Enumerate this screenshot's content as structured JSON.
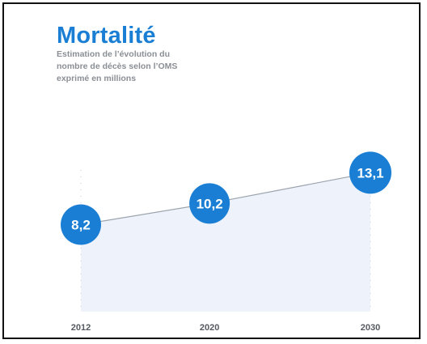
{
  "header": {
    "title": "Mortalité",
    "subtitle_lines": [
      "Estimation de l’évolution du",
      "nombre de décès selon l’OMS",
      "exprimé en millions"
    ]
  },
  "colors": {
    "accent": "#1a7fd4",
    "area_fill": "#eef3fb",
    "line": "#9aa3ad"
  },
  "chart_data": {
    "type": "area",
    "categories": [
      "2012",
      "2020",
      "2030"
    ],
    "x": [
      2012,
      2020,
      2030
    ],
    "values": [
      8.2,
      10.2,
      13.1
    ],
    "data_labels": [
      "8,2",
      "10,2",
      "13,1"
    ],
    "title": "Mortalité",
    "subtitle": "Estimation de l’évolution du nombre de décès selon l’OMS exprimé en millions",
    "xlabel": "",
    "ylabel": "",
    "ylim": [
      0,
      14.5
    ],
    "grid": false
  }
}
